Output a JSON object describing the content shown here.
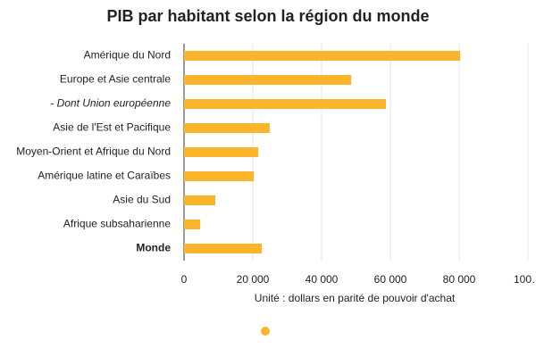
{
  "chart_data": {
    "type": "bar",
    "orientation": "horizontal",
    "title": "PIB par habitant selon la région du monde",
    "x_label": "Unité : dollars en parité de pouvoir d'achat",
    "categories": [
      "Amérique du Nord",
      "Europe et Asie centrale",
      "- Dont Union européenne",
      "Asie de l'Est et Pacifique",
      "Moyen-Orient et Afrique du Nord",
      "Amérique latine et Caraïbes",
      "Asie du Sud",
      "Afrique subsaharienne",
      "Monde"
    ],
    "category_styles": [
      "normal",
      "normal",
      "italic",
      "normal",
      "normal",
      "normal",
      "normal",
      "normal",
      "bold"
    ],
    "values": [
      80300,
      48600,
      58700,
      24900,
      21600,
      20300,
      9100,
      4700,
      22600
    ],
    "color": "#fbb52c",
    "xlim": [
      0,
      100000
    ],
    "xticks": [
      0,
      {
        "value": 20000,
        "label": "20 000"
      },
      {
        "value": 40000,
        "label": "40 000"
      },
      {
        "value": 60000,
        "label": "60 000"
      },
      {
        "value": 80000,
        "label": "80 000"
      },
      {
        "value": 100000,
        "label": "100…"
      }
    ],
    "grid": true,
    "legend": true
  }
}
